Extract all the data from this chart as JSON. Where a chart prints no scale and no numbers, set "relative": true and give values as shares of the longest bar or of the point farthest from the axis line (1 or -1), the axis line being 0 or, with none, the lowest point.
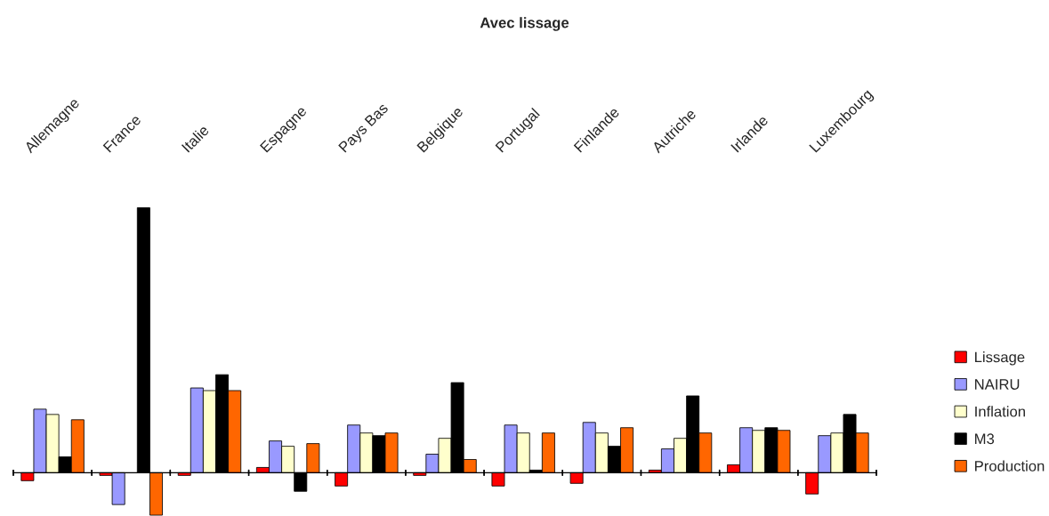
{
  "chart_data": {
    "type": "bar",
    "title": "Avec lissage",
    "relative": true,
    "legend": "right",
    "grid": false,
    "categories": [
      "Allemagne",
      "France",
      "Italie",
      "Espagne",
      "Pays Bas",
      "Belgique",
      "Portugal",
      "Finlande",
      "Autriche",
      "Irlande",
      "Luxembourg"
    ],
    "series": [
      {
        "name": "Lissage",
        "color": "#ff0000",
        "values": [
          -0.03,
          -0.01,
          -0.01,
          0.02,
          -0.05,
          -0.01,
          -0.05,
          -0.04,
          0.01,
          0.03,
          -0.08
        ]
      },
      {
        "name": "NAIRU",
        "color": "#9999ff",
        "values": [
          0.24,
          -0.12,
          0.32,
          0.12,
          0.18,
          0.07,
          0.18,
          0.19,
          0.09,
          0.17,
          0.14
        ]
      },
      {
        "name": "Inflation",
        "color": "#ffffcc",
        "values": [
          0.22,
          null,
          0.31,
          0.1,
          0.15,
          0.13,
          0.15,
          0.15,
          0.13,
          0.16,
          0.15
        ]
      },
      {
        "name": "M3",
        "color": "#000000",
        "values": [
          0.06,
          1,
          0.37,
          -0.07,
          0.14,
          0.34,
          0.01,
          0.1,
          0.29,
          0.17,
          0.22
        ]
      },
      {
        "name": "Production",
        "color": "#ff6600",
        "values": [
          0.2,
          -0.16,
          0.31,
          0.11,
          0.15,
          0.05,
          0.15,
          0.17,
          0.15,
          0.16,
          0.15
        ]
      }
    ]
  }
}
